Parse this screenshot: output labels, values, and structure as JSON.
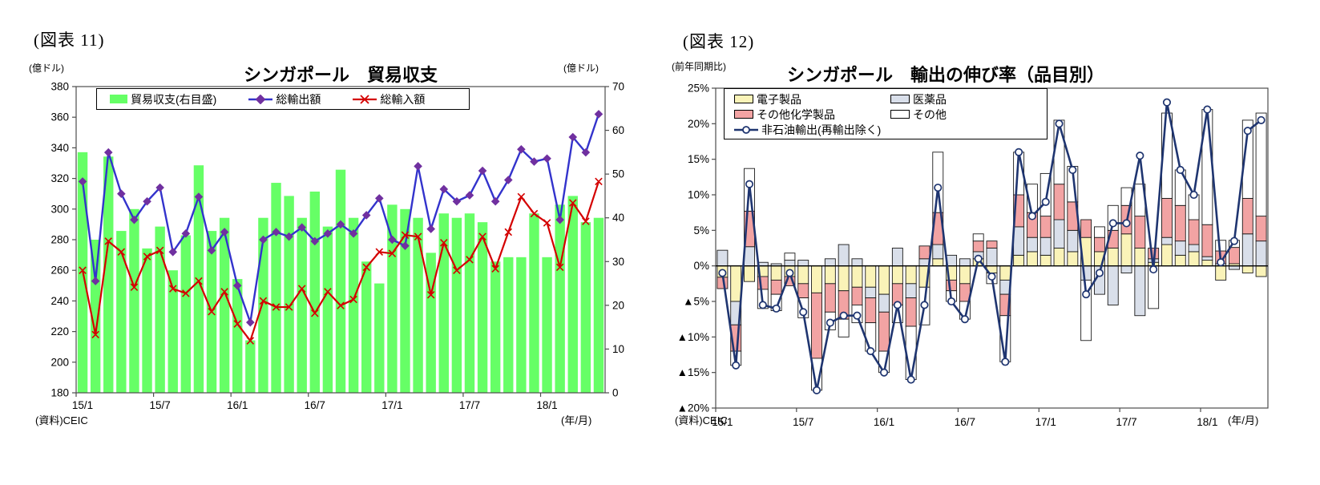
{
  "accent_colors": {
    "bar_green": "#66FF66",
    "export_line_blue": "#3333CC",
    "export_marker_purple": "#7030A0",
    "import_line_red": "#D40000",
    "nodx_line_navy": "#1F3570",
    "electronics_yellow": "#FAF3B8",
    "pharma_bluegray": "#D9DFEA",
    "chemicals_pink": "#F2A3A3",
    "other_white": "#FFFFFF"
  },
  "fig1": {
    "figure_label": "(図表 11)",
    "title": "シンガポール　貿易収支",
    "unit_left": "(億ドル)",
    "unit_right": "(億ドル)",
    "source": "(資料)CEIC",
    "x_unit": "(年/月)"
  },
  "fig2": {
    "figure_label": "(図表 12)",
    "title": "シンガポール　輸出の伸び率（品目別）",
    "unit_left": "(前年同期比)",
    "source": "(資料)CEIC",
    "x_unit": "(年/月)"
  },
  "chart_data": [
    {
      "type": "bar",
      "subtype": "bar+line combo, bars on right axis, lines on left axis",
      "title": "シンガポール 貿易収支",
      "x_categories": [
        "15/1",
        "15/2",
        "15/3",
        "15/4",
        "15/5",
        "15/6",
        "15/7",
        "15/8",
        "15/9",
        "15/10",
        "15/11",
        "15/12",
        "16/1",
        "16/2",
        "16/3",
        "16/4",
        "16/5",
        "16/6",
        "16/7",
        "16/8",
        "16/9",
        "16/10",
        "16/11",
        "16/12",
        "17/1",
        "17/2",
        "17/3",
        "17/4",
        "17/5",
        "17/6",
        "17/7",
        "17/8",
        "17/9",
        "17/10",
        "17/11",
        "17/12",
        "18/1",
        "18/2",
        "18/3",
        "18/4",
        "18/5"
      ],
      "x_tick_labels": [
        "15/1",
        "15/7",
        "16/1",
        "16/7",
        "17/1",
        "17/7",
        "18/1"
      ],
      "y_left": {
        "label": "(億ドル)",
        "min": 180,
        "max": 380,
        "step": 20,
        "ticks": [
          "380",
          "360",
          "340",
          "320",
          "300",
          "280",
          "260",
          "240",
          "220",
          "200",
          "180"
        ]
      },
      "y_right": {
        "label": "(億ドル)",
        "min": 0,
        "max": 70,
        "step": 10,
        "ticks": [
          "70",
          "60",
          "50",
          "40",
          "30",
          "20",
          "10",
          "0"
        ]
      },
      "grid": false,
      "legend_position": "top",
      "bar_series": {
        "name": "貿易収支(右目盛)",
        "axis": "right",
        "color": "#66FF66",
        "values": [
          55,
          35,
          54,
          37,
          42,
          33,
          38,
          28,
          36,
          52,
          37,
          40,
          26,
          12,
          40,
          48,
          45,
          40,
          46,
          38,
          51,
          40,
          30,
          25,
          43,
          42,
          40,
          32,
          41,
          40,
          41,
          39,
          30,
          31,
          31,
          41,
          31,
          43,
          45,
          39,
          40
        ]
      },
      "line_series": [
        {
          "name": "総輸出額",
          "axis": "left",
          "color": "#3333CC",
          "marker": "diamond",
          "marker_color": "#7030A0",
          "values": [
            318,
            253,
            337,
            310,
            293,
            305,
            314,
            272,
            284,
            308,
            273,
            285,
            250,
            226,
            280,
            285,
            282,
            288,
            279,
            284,
            290,
            284,
            296,
            307,
            280,
            276,
            328,
            287,
            313,
            305,
            309,
            325,
            305,
            319,
            339,
            331,
            333,
            293,
            347,
            337,
            362
          ]
        },
        {
          "name": "総輸入額",
          "axis": "left",
          "color": "#D40000",
          "marker": "x",
          "marker_color": "#D40000",
          "values": [
            260,
            218,
            279,
            272,
            249,
            269,
            273,
            248,
            245,
            253,
            233,
            246,
            225,
            214,
            240,
            236,
            236,
            248,
            232,
            246,
            237,
            241,
            262,
            272,
            271,
            283,
            282,
            244,
            278,
            260,
            267,
            282,
            261,
            285,
            308,
            297,
            291,
            262,
            304,
            292,
            318
          ]
        }
      ]
    },
    {
      "type": "bar",
      "subtype": "stacked contribution bars + line, all in % year-over-year",
      "title": "シンガポール 輸出の伸び率（品目別）",
      "x_categories": [
        "15/1",
        "15/2",
        "15/3",
        "15/4",
        "15/5",
        "15/6",
        "15/7",
        "15/8",
        "15/9",
        "15/10",
        "15/11",
        "15/12",
        "16/1",
        "16/2",
        "16/3",
        "16/4",
        "16/5",
        "16/6",
        "16/7",
        "16/8",
        "16/9",
        "16/10",
        "16/11",
        "16/12",
        "17/1",
        "17/2",
        "17/3",
        "17/4",
        "17/5",
        "17/6",
        "17/7",
        "17/8",
        "17/9",
        "17/10",
        "17/11",
        "17/12",
        "18/1",
        "18/2",
        "18/3",
        "18/4",
        "18/5"
      ],
      "x_tick_labels": [
        "15/1",
        "15/7",
        "16/1",
        "16/7",
        "17/1",
        "17/7",
        "18/1"
      ],
      "y": {
        "label": "(前年同期比)",
        "min": -20,
        "max": 25,
        "step": 5,
        "unit": "%",
        "negative_prefix": "▲",
        "ticks": [
          "25%",
          "20%",
          "15%",
          "10%",
          "5%",
          "0%",
          "▲5%",
          "▲10%",
          "▲15%",
          "▲20%"
        ]
      },
      "grid": false,
      "legend_position": "top",
      "stack_series": [
        {
          "name": "電子製品",
          "color": "#FAF3B8",
          "values": [
            -1.6,
            -5.0,
            -2.2,
            -1.5,
            -2.0,
            -1.5,
            -2.5,
            -3.8,
            -2.5,
            -3.5,
            -3.0,
            -3.0,
            -4.0,
            -2.5,
            -2.5,
            -3.0,
            1.0,
            -2.0,
            -2.5,
            1.0,
            -1.0,
            -2.0,
            1.5,
            2.0,
            1.5,
            2.5,
            2.0,
            4.0,
            2.0,
            2.5,
            4.5,
            2.5,
            0.5,
            3.0,
            1.5,
            2.0,
            0.8,
            -2.0,
            0.3,
            -1.0,
            -1.5
          ]
        },
        {
          "name": "医薬品",
          "color": "#D9DFEA",
          "values": [
            2.2,
            -3.3,
            2.7,
            0.5,
            0.3,
            0.8,
            0.8,
            0.0,
            1.0,
            3.0,
            1.0,
            -1.5,
            -2.5,
            2.5,
            -2.0,
            1.0,
            2.0,
            1.5,
            1.0,
            1.0,
            2.5,
            -2.0,
            4.0,
            2.0,
            2.5,
            4.0,
            3.0,
            -2.0,
            -4.0,
            -5.5,
            -1.0,
            -7.0,
            0.5,
            1.0,
            2.0,
            1.0,
            0.5,
            0.3,
            -0.5,
            4.5,
            3.5
          ]
        },
        {
          "name": "その他化学製品",
          "color": "#F2A3A3",
          "values": [
            -1.6,
            -3.7,
            5.0,
            -1.8,
            -2.0,
            -1.3,
            -2.0,
            -9.2,
            -4.0,
            -4.0,
            -2.5,
            -3.5,
            -5.5,
            -3.0,
            -4.0,
            1.8,
            4.5,
            -1.5,
            -2.5,
            1.5,
            1.0,
            -3.0,
            4.5,
            3.5,
            3.0,
            5.0,
            4.0,
            2.5,
            2.0,
            2.5,
            4.0,
            4.5,
            1.5,
            5.5,
            5.0,
            3.5,
            4.5,
            1.8,
            2.3,
            5.0,
            3.5
          ]
        },
        {
          "name": "その他",
          "color": "#FFFFFF",
          "values": [
            0.0,
            -2.0,
            6.0,
            -2.7,
            -2.3,
            1.0,
            -2.8,
            -4.5,
            -2.5,
            -2.5,
            -2.5,
            -4.0,
            -3.0,
            -2.5,
            -7.5,
            -5.3,
            8.5,
            -1.5,
            -2.5,
            1.0,
            -1.5,
            -6.5,
            6.0,
            4.0,
            6.0,
            9.0,
            5.0,
            -8.5,
            1.5,
            3.5,
            2.5,
            4.5,
            -6.0,
            12.0,
            5.0,
            3.5,
            16.2,
            1.5,
            1.0,
            11.0,
            14.5
          ]
        }
      ],
      "line_series": {
        "name": "非石油輸出(再輸出除く)",
        "color": "#1F3570",
        "marker": "circle",
        "marker_fill": "#FFFFFF",
        "values": [
          -1,
          -14,
          11.5,
          -5.5,
          -6,
          -1,
          -6.5,
          -17.5,
          -8,
          -7,
          -7,
          -12,
          -15,
          -5.5,
          -16,
          -5.5,
          11,
          -5,
          -7.5,
          1,
          -1.5,
          -13.5,
          16,
          7,
          9,
          20,
          13.5,
          -4,
          -1,
          6,
          6,
          15.5,
          -0.5,
          23,
          13.5,
          10,
          22,
          0.5,
          3.5,
          19,
          20.5
        ]
      }
    }
  ]
}
